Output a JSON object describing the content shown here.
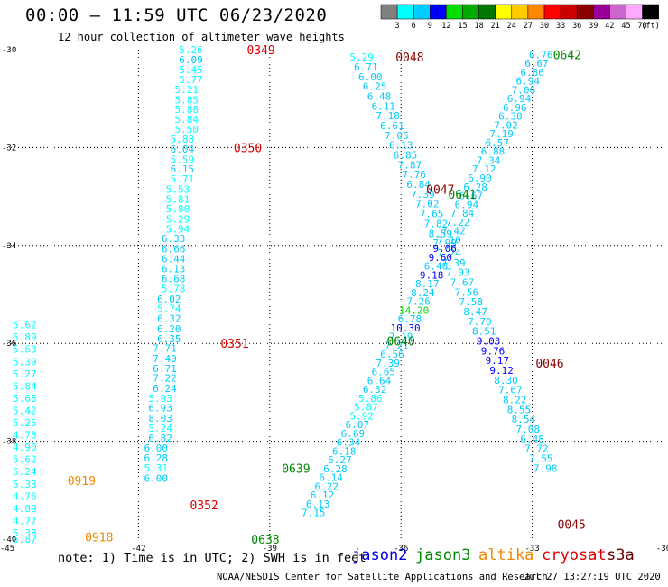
{
  "header": {
    "title": "00:00 – 11:59 UTC 06/23/2020",
    "subtitle": "12 hour collection of altimeter wave heights"
  },
  "footer": {
    "note": "note: 1) Time is in UTC; 2) SWH is in feet",
    "credit": "NOAA/NESDIS Center for Satellite Applications and Research",
    "timestamp": "Jul 27 13:27:19 UTC 2020"
  },
  "satellites": [
    {
      "name": "jason2",
      "color": "#0000dd"
    },
    {
      "name": "jason3",
      "color": "#008800"
    },
    {
      "name": "altika",
      "color": "#ee8800"
    },
    {
      "name": "cryosat",
      "color": "#dd0000"
    },
    {
      "name": "s3a",
      "color": "#660000"
    }
  ],
  "colorbar": {
    "colors": [
      "#808080",
      "#00ffff",
      "#00ccff",
      "#0000ff",
      "#00dd00",
      "#00aa00",
      "#007700",
      "#ffff00",
      "#ffcc00",
      "#ff8800",
      "#ff0000",
      "#cc0000",
      "#880000",
      "#990099",
      "#cc66cc",
      "#ffaaff",
      "#000000"
    ],
    "labels": [
      "3",
      "6",
      "9",
      "12",
      "15",
      "18",
      "21",
      "24",
      "27",
      "30",
      "33",
      "36",
      "39",
      "42",
      "45",
      "70",
      "(ft)"
    ]
  },
  "chart_data": {
    "type": "scatter",
    "xlim": [
      -45,
      -30
    ],
    "ylim": [
      -40,
      -30
    ],
    "x_ticks": [
      "-45",
      "-42",
      "-39",
      "-36",
      "-33",
      "-30"
    ],
    "y_ticks": [
      "-30",
      "-32",
      "-34",
      "-36",
      "-38",
      "-40"
    ],
    "grid": true,
    "tracks": [
      {
        "time_label": "0349",
        "label_color": "#dd0000",
        "label_pos": [
          -39.2,
          -30.0
        ]
      },
      {
        "time_label": "0350",
        "label_color": "#dd0000",
        "label_pos": [
          -39.5,
          -32.0
        ]
      },
      {
        "time_label": "0351",
        "label_color": "#dd0000",
        "label_pos": [
          -39.8,
          -36.0
        ]
      },
      {
        "time_label": "0352",
        "label_color": "#dd0000",
        "label_pos": [
          -40.5,
          -39.3
        ]
      },
      {
        "time_label": "0048",
        "label_color": "#880000",
        "label_pos": [
          -35.8,
          -30.15
        ]
      },
      {
        "time_label": "0047",
        "label_color": "#880000",
        "label_pos": [
          -35.1,
          -32.85
        ]
      },
      {
        "time_label": "0046",
        "label_color": "#880000",
        "label_pos": [
          -32.6,
          -36.4
        ]
      },
      {
        "time_label": "0045",
        "label_color": "#880000",
        "label_pos": [
          -32.1,
          -39.7
        ]
      },
      {
        "time_label": "0642",
        "label_color": "#008800",
        "label_pos": [
          -32.2,
          -30.1
        ]
      },
      {
        "time_label": "0641",
        "label_color": "#008800",
        "label_pos": [
          -34.6,
          -32.95
        ]
      },
      {
        "time_label": "0640",
        "label_color": "#008800",
        "label_pos": [
          -36.0,
          -35.95
        ]
      },
      {
        "time_label": "0639",
        "label_color": "#008800",
        "label_pos": [
          -38.4,
          -38.55
        ]
      },
      {
        "time_label": "0638",
        "label_color": "#008800",
        "label_pos": [
          -39.1,
          -40.0
        ]
      },
      {
        "time_label": "0919",
        "label_color": "#ee8800",
        "label_pos": [
          -43.3,
          -38.8
        ]
      },
      {
        "time_label": "0918",
        "label_color": "#ee8800",
        "label_pos": [
          -42.9,
          -39.95
        ]
      }
    ],
    "points": [
      {
        "v": "5.26",
        "lon": -40.8,
        "lat": -30.0
      },
      {
        "v": "6.09",
        "lon": -40.8,
        "lat": -30.2
      },
      {
        "v": "5.45",
        "lon": -40.8,
        "lat": -30.41
      },
      {
        "v": "5.77",
        "lon": -40.8,
        "lat": -30.61
      },
      {
        "v": "5.21",
        "lon": -40.9,
        "lat": -30.81
      },
      {
        "v": "5.85",
        "lon": -40.9,
        "lat": -31.02
      },
      {
        "v": "5.88",
        "lon": -40.9,
        "lat": -31.22
      },
      {
        "v": "5.84",
        "lon": -40.9,
        "lat": -31.42
      },
      {
        "v": "5.50",
        "lon": -40.9,
        "lat": -31.62
      },
      {
        "v": "5.88",
        "lon": -41.0,
        "lat": -31.83
      },
      {
        "v": "6.04",
        "lon": -41.0,
        "lat": -32.03
      },
      {
        "v": "5.59",
        "lon": -41.0,
        "lat": -32.24
      },
      {
        "v": "6.15",
        "lon": -41.0,
        "lat": -32.44
      },
      {
        "v": "5.71",
        "lon": -41.0,
        "lat": -32.64
      },
      {
        "v": "5.53",
        "lon": -41.1,
        "lat": -32.85
      },
      {
        "v": "5.81",
        "lon": -41.1,
        "lat": -33.05
      },
      {
        "v": "5.80",
        "lon": -41.1,
        "lat": -33.25
      },
      {
        "v": "5.29",
        "lon": -41.1,
        "lat": -33.46
      },
      {
        "v": "5.94",
        "lon": -41.1,
        "lat": -33.66
      },
      {
        "v": "6.33",
        "lon": -41.2,
        "lat": -33.86
      },
      {
        "v": "6.66",
        "lon": -41.2,
        "lat": -34.07
      },
      {
        "v": "6.44",
        "lon": -41.2,
        "lat": -34.27
      },
      {
        "v": "6.13",
        "lon": -41.2,
        "lat": -34.47
      },
      {
        "v": "6.68",
        "lon": -41.2,
        "lat": -34.68
      },
      {
        "v": "5.78",
        "lon": -41.2,
        "lat": -34.88
      },
      {
        "v": "6.02",
        "lon": -41.3,
        "lat": -35.09
      },
      {
        "v": "5.74",
        "lon": -41.3,
        "lat": -35.29
      },
      {
        "v": "6.32",
        "lon": -41.3,
        "lat": -35.49
      },
      {
        "v": "6.20",
        "lon": -41.3,
        "lat": -35.7
      },
      {
        "v": "6.35",
        "lon": -41.3,
        "lat": -35.9
      },
      {
        "v": "7.71",
        "lon": -41.4,
        "lat": -36.1
      },
      {
        "v": "7.40",
        "lon": -41.4,
        "lat": -36.31
      },
      {
        "v": "6.71",
        "lon": -41.4,
        "lat": -36.51
      },
      {
        "v": "7.22",
        "lon": -41.4,
        "lat": -36.71
      },
      {
        "v": "6.24",
        "lon": -41.4,
        "lat": -36.92
      },
      {
        "v": "5.93",
        "lon": -41.5,
        "lat": -37.12
      },
      {
        "v": "6.93",
        "lon": -41.5,
        "lat": -37.32
      },
      {
        "v": "8.03",
        "lon": -41.5,
        "lat": -37.53
      },
      {
        "v": "5.24",
        "lon": -41.5,
        "lat": -37.73
      },
      {
        "v": "6.82",
        "lon": -41.5,
        "lat": -37.93
      },
      {
        "v": "6.00",
        "lon": -41.6,
        "lat": -38.14
      },
      {
        "v": "6.28",
        "lon": -41.6,
        "lat": -38.34
      },
      {
        "v": "5.31",
        "lon": -41.6,
        "lat": -38.54
      },
      {
        "v": "6.00",
        "lon": -41.6,
        "lat": -38.75
      },
      {
        "v": "5.62",
        "lon": -44.6,
        "lat": -35.62
      },
      {
        "v": "5.89",
        "lon": -44.6,
        "lat": -35.87
      },
      {
        "v": "5.63",
        "lon": -44.6,
        "lat": -36.12
      },
      {
        "v": "5.39",
        "lon": -44.6,
        "lat": -36.37
      },
      {
        "v": "5.27",
        "lon": -44.6,
        "lat": -36.62
      },
      {
        "v": "5.84",
        "lon": -44.6,
        "lat": -36.87
      },
      {
        "v": "5.68",
        "lon": -44.6,
        "lat": -37.12
      },
      {
        "v": "5.42",
        "lon": -44.6,
        "lat": -37.37
      },
      {
        "v": "5.25",
        "lon": -44.6,
        "lat": -37.62
      },
      {
        "v": "4.78",
        "lon": -44.6,
        "lat": -37.87
      },
      {
        "v": "4.90",
        "lon": -44.6,
        "lat": -38.12
      },
      {
        "v": "5.62",
        "lon": -44.6,
        "lat": -38.37
      },
      {
        "v": "5.24",
        "lon": -44.6,
        "lat": -38.62
      },
      {
        "v": "5.33",
        "lon": -44.6,
        "lat": -38.87
      },
      {
        "v": "4.76",
        "lon": -44.6,
        "lat": -39.12
      },
      {
        "v": "4.89",
        "lon": -44.6,
        "lat": -39.37
      },
      {
        "v": "4.77",
        "lon": -44.6,
        "lat": -39.62
      },
      {
        "v": "5.38",
        "lon": -44.6,
        "lat": -39.87
      },
      {
        "v": "5.87",
        "lon": -44.6,
        "lat": -40.0
      },
      {
        "v": "5.29",
        "lon": -36.9,
        "lat": -30.15
      },
      {
        "v": "6.71",
        "lon": -36.8,
        "lat": -30.35
      },
      {
        "v": "6.00",
        "lon": -36.7,
        "lat": -30.55
      },
      {
        "v": "6.25",
        "lon": -36.6,
        "lat": -30.75
      },
      {
        "v": "6.48",
        "lon": -36.5,
        "lat": -30.95
      },
      {
        "v": "6.11",
        "lon": -36.4,
        "lat": -31.15
      },
      {
        "v": "7.18",
        "lon": -36.3,
        "lat": -31.35
      },
      {
        "v": "6.61",
        "lon": -36.2,
        "lat": -31.55
      },
      {
        "v": "7.05",
        "lon": -36.1,
        "lat": -31.75
      },
      {
        "v": "6.13",
        "lon": -36.0,
        "lat": -31.95
      },
      {
        "v": "6.85",
        "lon": -35.9,
        "lat": -32.15
      },
      {
        "v": "7.87",
        "lon": -35.8,
        "lat": -32.35
      },
      {
        "v": "7.76",
        "lon": -35.7,
        "lat": -32.55
      },
      {
        "v": "6.84",
        "lon": -35.6,
        "lat": -32.75
      },
      {
        "v": "7.39",
        "lon": -35.5,
        "lat": -32.95
      },
      {
        "v": "7.02",
        "lon": -35.4,
        "lat": -33.15
      },
      {
        "v": "7.65",
        "lon": -35.3,
        "lat": -33.35
      },
      {
        "v": "7.82",
        "lon": -35.2,
        "lat": -33.55
      },
      {
        "v": "8.59",
        "lon": -35.1,
        "lat": -33.75
      },
      {
        "v": "7.99",
        "lon": -35.0,
        "lat": -33.95
      },
      {
        "v": "7.24",
        "lon": -34.9,
        "lat": -34.15
      },
      {
        "v": "7.39",
        "lon": -34.8,
        "lat": -34.35
      },
      {
        "v": "7.03",
        "lon": -34.7,
        "lat": -34.55
      },
      {
        "v": "7.67",
        "lon": -34.6,
        "lat": -34.75
      },
      {
        "v": "7.56",
        "lon": -34.5,
        "lat": -34.95
      },
      {
        "v": "7.58",
        "lon": -34.4,
        "lat": -35.15
      },
      {
        "v": "8.47",
        "lon": -34.3,
        "lat": -35.35
      },
      {
        "v": "7.70",
        "lon": -34.2,
        "lat": -35.55
      },
      {
        "v": "8.51",
        "lon": -34.1,
        "lat": -35.75
      },
      {
        "v": "9.03",
        "lon": -34.0,
        "lat": -35.95
      },
      {
        "v": "9.76",
        "lon": -33.9,
        "lat": -36.15
      },
      {
        "v": "9.17",
        "lon": -33.8,
        "lat": -36.35
      },
      {
        "v": "9.12",
        "lon": -33.7,
        "lat": -36.55
      },
      {
        "v": "8.30",
        "lon": -33.6,
        "lat": -36.75
      },
      {
        "v": "7.67",
        "lon": -33.5,
        "lat": -36.95
      },
      {
        "v": "8.22",
        "lon": -33.4,
        "lat": -37.15
      },
      {
        "v": "8.55",
        "lon": -33.3,
        "lat": -37.35
      },
      {
        "v": "8.54",
        "lon": -33.2,
        "lat": -37.55
      },
      {
        "v": "7.08",
        "lon": -33.1,
        "lat": -37.75
      },
      {
        "v": "6.48",
        "lon": -33.0,
        "lat": -37.95
      },
      {
        "v": "7.72",
        "lon": -32.9,
        "lat": -38.15
      },
      {
        "v": "7.55",
        "lon": -32.8,
        "lat": -38.35
      },
      {
        "v": "7.98",
        "lon": -32.7,
        "lat": -38.55
      },
      {
        "v": "6.76",
        "lon": -32.8,
        "lat": -30.1
      },
      {
        "v": "6.67",
        "lon": -32.9,
        "lat": -30.28
      },
      {
        "v": "6.86",
        "lon": -33.0,
        "lat": -30.46
      },
      {
        "v": "6.94",
        "lon": -33.1,
        "lat": -30.64
      },
      {
        "v": "7.06",
        "lon": -33.2,
        "lat": -30.82
      },
      {
        "v": "6.94",
        "lon": -33.3,
        "lat": -31.0
      },
      {
        "v": "6.96",
        "lon": -33.4,
        "lat": -31.18
      },
      {
        "v": "6.38",
        "lon": -33.5,
        "lat": -31.36
      },
      {
        "v": "7.02",
        "lon": -33.6,
        "lat": -31.54
      },
      {
        "v": "7.19",
        "lon": -33.7,
        "lat": -31.72
      },
      {
        "v": "6.57",
        "lon": -33.8,
        "lat": -31.9
      },
      {
        "v": "6.88",
        "lon": -33.9,
        "lat": -32.08
      },
      {
        "v": "7.34",
        "lon": -34.0,
        "lat": -32.26
      },
      {
        "v": "7.12",
        "lon": -34.1,
        "lat": -32.44
      },
      {
        "v": "6.90",
        "lon": -34.2,
        "lat": -32.62
      },
      {
        "v": "6.28",
        "lon": -34.3,
        "lat": -32.8
      },
      {
        "v": "6.67",
        "lon": -34.4,
        "lat": -32.98
      },
      {
        "v": "6.94",
        "lon": -34.5,
        "lat": -33.16
      },
      {
        "v": "7.84",
        "lon": -34.6,
        "lat": -33.34
      },
      {
        "v": "7.22",
        "lon": -34.7,
        "lat": -33.52
      },
      {
        "v": "7.42",
        "lon": -34.8,
        "lat": -33.7
      },
      {
        "v": "7.10",
        "lon": -34.9,
        "lat": -33.88
      },
      {
        "v": "9.06",
        "lon": -35.0,
        "lat": -34.06
      },
      {
        "v": "9.60",
        "lon": -35.1,
        "lat": -34.24
      },
      {
        "v": "6.48",
        "lon": -35.2,
        "lat": -34.42
      },
      {
        "v": "9.18",
        "lon": -35.3,
        "lat": -34.6
      },
      {
        "v": "8.17",
        "lon": -35.4,
        "lat": -34.78
      },
      {
        "v": "8.24",
        "lon": -35.5,
        "lat": -34.96
      },
      {
        "v": "7.26",
        "lon": -35.6,
        "lat": -35.14
      },
      {
        "v": "14.20",
        "lon": -35.7,
        "lat": -35.32
      },
      {
        "v": "6.78",
        "lon": -35.8,
        "lat": -35.5
      },
      {
        "v": "10.30",
        "lon": -35.9,
        "lat": -35.68
      },
      {
        "v": "7.19",
        "lon": -36.0,
        "lat": -35.86
      },
      {
        "v": "7.21",
        "lon": -36.1,
        "lat": -36.04
      },
      {
        "v": "6.56",
        "lon": -36.2,
        "lat": -36.22
      },
      {
        "v": "7.39",
        "lon": -36.3,
        "lat": -36.4
      },
      {
        "v": "6.65",
        "lon": -36.4,
        "lat": -36.58
      },
      {
        "v": "6.64",
        "lon": -36.5,
        "lat": -36.76
      },
      {
        "v": "6.32",
        "lon": -36.6,
        "lat": -36.94
      },
      {
        "v": "5.86",
        "lon": -36.7,
        "lat": -37.12
      },
      {
        "v": "5.87",
        "lon": -36.8,
        "lat": -37.3
      },
      {
        "v": "5.92",
        "lon": -36.9,
        "lat": -37.48
      },
      {
        "v": "6.07",
        "lon": -37.0,
        "lat": -37.66
      },
      {
        "v": "6.69",
        "lon": -37.1,
        "lat": -37.84
      },
      {
        "v": "6.34",
        "lon": -37.2,
        "lat": -38.02
      },
      {
        "v": "6.18",
        "lon": -37.3,
        "lat": -38.2
      },
      {
        "v": "6.27",
        "lon": -37.4,
        "lat": -38.38
      },
      {
        "v": "6.28",
        "lon": -37.5,
        "lat": -38.56
      },
      {
        "v": "6.14",
        "lon": -37.6,
        "lat": -38.74
      },
      {
        "v": "6.22",
        "lon": -37.7,
        "lat": -38.92
      },
      {
        "v": "6.12",
        "lon": -37.8,
        "lat": -39.1
      },
      {
        "v": "6.13",
        "lon": -37.9,
        "lat": -39.28
      },
      {
        "v": "7.15",
        "lon": -38.0,
        "lat": -39.46
      }
    ]
  }
}
